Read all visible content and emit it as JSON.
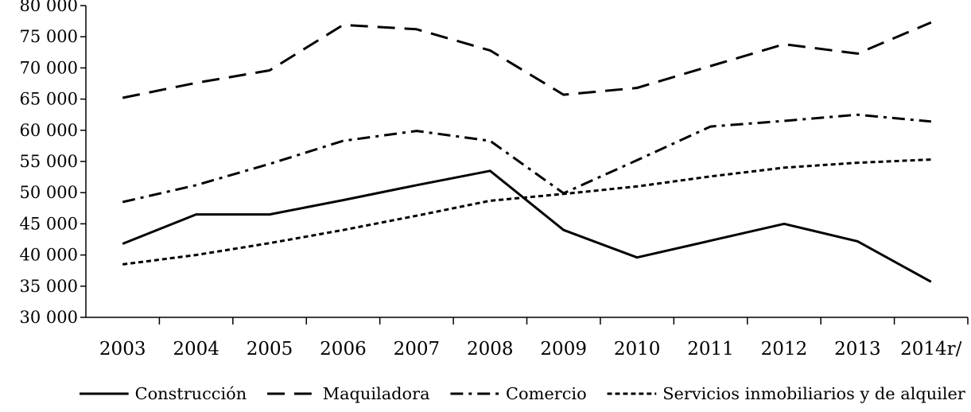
{
  "chart_data": {
    "type": "line",
    "title": "",
    "xlabel": "",
    "ylabel": "",
    "categories": [
      "2003",
      "2004",
      "2005",
      "2006",
      "2007",
      "2008",
      "2009",
      "2010",
      "2011",
      "2012",
      "2013",
      "2014r/"
    ],
    "yticks": [
      "30 000",
      "35 000",
      "40 000",
      "45 000",
      "50 000",
      "55 000",
      "60 000",
      "65 000",
      "70 000",
      "75 000",
      "80 000"
    ],
    "ylim": [
      30000,
      80000
    ],
    "grid": false,
    "legend_position": "bottom",
    "series": [
      {
        "name": "Construcción",
        "dash": "solid",
        "values": [
          41800,
          46500,
          46500,
          48800,
          51200,
          53500,
          44000,
          39600,
          42300,
          45000,
          42200,
          35700
        ]
      },
      {
        "name": "Maquiladora",
        "dash": "dash",
        "values": [
          65200,
          67600,
          69600,
          76900,
          76200,
          72800,
          65700,
          66800,
          70300,
          73800,
          72300,
          77300
        ]
      },
      {
        "name": "Comercio",
        "dash": "dashdot",
        "values": [
          48500,
          51200,
          54600,
          58300,
          59900,
          58300,
          49900,
          55200,
          60600,
          61500,
          62500,
          61400
        ]
      },
      {
        "name": "Servicios inmobiliarios y de alquiler",
        "dash": "dot",
        "values": [
          38500,
          40000,
          41900,
          44000,
          46300,
          48700,
          49800,
          51000,
          52600,
          54000,
          54800,
          55300
        ]
      }
    ]
  }
}
